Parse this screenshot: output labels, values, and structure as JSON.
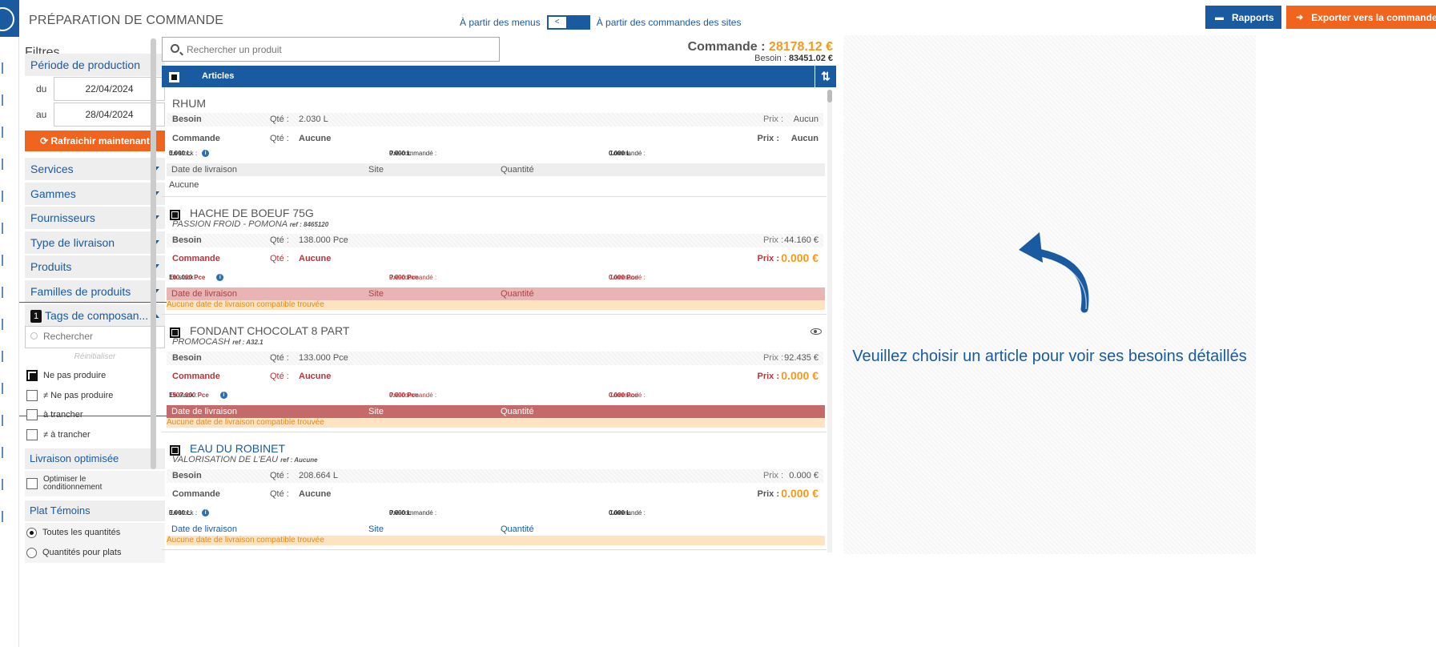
{
  "header": {
    "title": "PRÉPARATION DE COMMANDE",
    "mode_left": "À partir des menus",
    "mode_toggle": "<",
    "mode_right": "À partir des commandes des sites",
    "btn_reports": "Rapports",
    "btn_export": "Exporter vers la commande"
  },
  "filters": {
    "title": "Filtres",
    "period_label": "Période de production",
    "from_label": "du",
    "from_value": "22/04/2024",
    "to_label": "au",
    "to_value": "28/04/2024",
    "refresh_label": "Rafraichir maintenant",
    "sections": [
      "Services",
      "Gammes",
      "Fournisseurs",
      "Type de livraison",
      "Produits",
      "Familles de produits"
    ],
    "tags": {
      "count": "1",
      "label": "Tags de composan...",
      "search_placeholder": "Rechercher",
      "reset": "Réinitialiser",
      "options": [
        {
          "label": "Ne pas produire",
          "checked": true
        },
        {
          "label": "≠ Ne pas produire",
          "checked": false
        },
        {
          "label": "à trancher",
          "checked": false
        },
        {
          "label": "≠ à trancher",
          "checked": false
        }
      ]
    },
    "delivery_label": "Livraison optimisée",
    "optimize_label": "Optimiser le conditionnement",
    "plat_label": "Plat Témoins",
    "plat_options": [
      {
        "label": "Toutes les quantités",
        "checked": true
      },
      {
        "label": "Quantités pour plats",
        "checked": false
      }
    ]
  },
  "search": {
    "placeholder": "Rechercher un produit"
  },
  "totals": {
    "order_label": "Commande : ",
    "order_value": "28178.12 €",
    "need_label": "Besoin : ",
    "need_value": "83451.02 €"
  },
  "list": {
    "header": "Articles",
    "col_date": "Date de livraison",
    "col_site": "Site",
    "col_qty": "Quantité",
    "besoin_label": "Besoin",
    "commande_label": "Commande",
    "qty_label": "Qté :",
    "price_label": "Prix :",
    "stock_label": "En stock : ",
    "precmd_label": "Pré-commandé : ",
    "cmd_label": "Commandé : ",
    "no_date": "Aucune date de livraison compatible trouvée",
    "articles": [
      {
        "name": "RHUM",
        "besoin_qty": "2.030 L",
        "besoin_price": "Aucun",
        "cmd_qty": "Aucune",
        "cmd_price": "Aucun",
        "stock": "0.000 L",
        "precmd": "0.000 L",
        "cmd": "0.000 L",
        "delivery": "Aucune"
      },
      {
        "name": "HACHE DE BOEUF 75G",
        "supplier": "PASSION FROID - POMONA",
        "ref": "ref : 8465120",
        "besoin_qty": "138.000 Pce",
        "besoin_price": "44.160 €",
        "cmd_qty": "Aucune",
        "cmd_price": "0.000 €",
        "stock": "100.000 Pce",
        "precmd": "0.000 Pce",
        "cmd": "0.000 Pce"
      },
      {
        "name": "FONDANT CHOCOLAT 8 PART",
        "supplier": "PROMOCASH",
        "ref": "ref : A32.1",
        "besoin_qty": "133.000 Pce",
        "besoin_price": "92.435 €",
        "cmd_qty": "Aucune",
        "cmd_price": "0.000 €",
        "stock": "1507.000 Pce",
        "precmd": "0.000 Pce",
        "cmd": "0.000 Pce"
      },
      {
        "name": "EAU DU ROBINET",
        "supplier": "VALORISATION DE L'EAU",
        "ref": "ref : Aucune",
        "besoin_qty": "208.664 L",
        "besoin_price": "0.000 €",
        "cmd_qty": "Aucune",
        "cmd_price": "0.000 €",
        "stock": "0.000 L",
        "precmd": "0.000 L",
        "cmd": "0.000 L"
      }
    ]
  },
  "detail": {
    "message": "Veuillez choisir un article pour voir ses besoins détaillés"
  },
  "colors": {
    "primary": "#1a5aa0",
    "accent": "#f0641e",
    "amount": "#f39a1e",
    "alert": "#b5363a"
  }
}
